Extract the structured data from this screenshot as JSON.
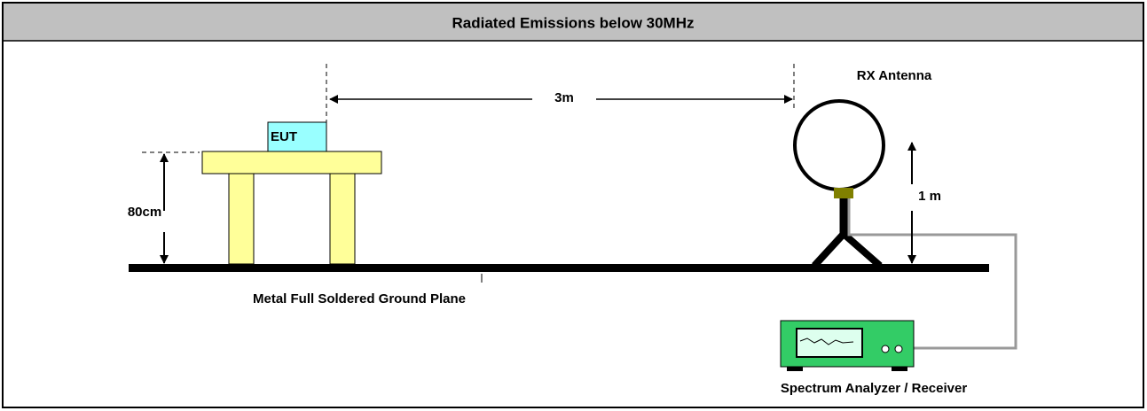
{
  "header": {
    "title": "Radiated Emissions below 30MHz"
  },
  "labels": {
    "eut": "EUT",
    "distance": "3m",
    "antenna": "RX Antenna",
    "table_height": "80cm",
    "antenna_height": "1 m",
    "ground_plane": "Metal Full Soldered Ground Plane",
    "analyzer": "Spectrum Analyzer / Receiver"
  }
}
